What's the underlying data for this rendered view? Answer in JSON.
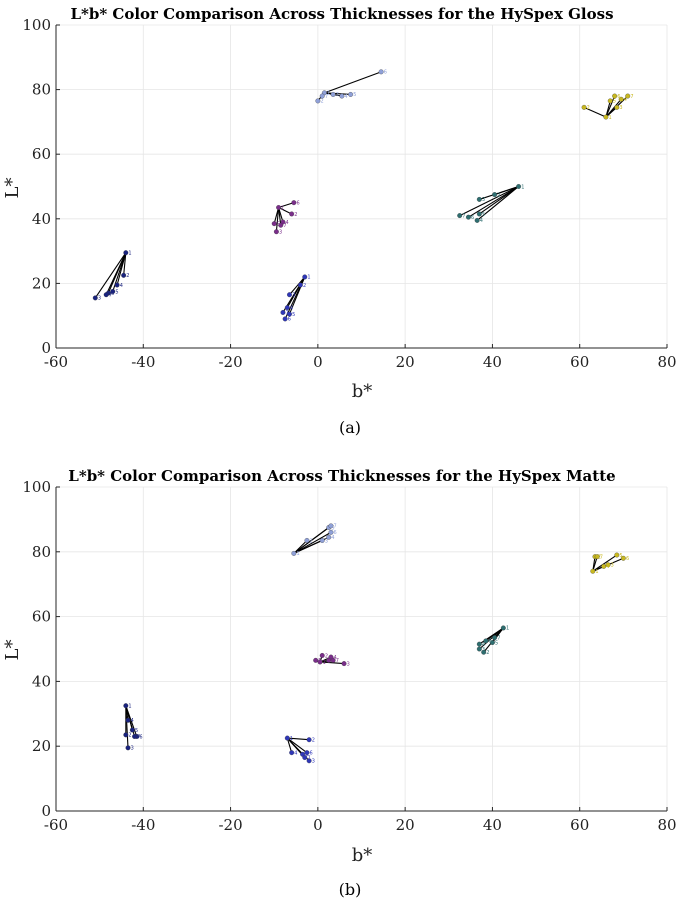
{
  "captions": [
    "(a)",
    "(b)"
  ],
  "colors": {
    "navy": "#1a237e",
    "blue": "#2f37b8",
    "purple": "#7a2e8a",
    "teal": "#2e6e70",
    "lightblue": "#8fa0d8",
    "yellow": "#c8b820"
  },
  "chart_data": [
    {
      "type": "scatter",
      "title": "L*b* Color Comparison Across Thicknesses for the HySpex Gloss",
      "xlabel": "b*",
      "ylabel": "L*",
      "xlim": [
        -60,
        80
      ],
      "ylim": [
        0,
        100
      ],
      "xticks": [
        "-60",
        "-40",
        "-20",
        "0",
        "20",
        "40",
        "60",
        "80"
      ],
      "yticks": [
        "0",
        "20",
        "40",
        "60",
        "80",
        "100"
      ],
      "grid": true,
      "groups": [
        {
          "color": "navy",
          "points": [
            {
              "b": -44,
              "L": 29.5,
              "label": "1"
            },
            {
              "b": -44.5,
              "L": 22.5,
              "label": "2"
            },
            {
              "b": -51,
              "L": 15.5,
              "label": "3"
            },
            {
              "b": -46,
              "L": 19.5,
              "label": "4"
            },
            {
              "b": -47,
              "L": 17.5,
              "label": "5"
            },
            {
              "b": -48,
              "L": 17,
              "label": "6"
            },
            {
              "b": -48.5,
              "L": 16.5,
              "label": "7"
            }
          ]
        },
        {
          "color": "blue",
          "points": [
            {
              "b": -3,
              "L": 22,
              "label": "1"
            },
            {
              "b": -4,
              "L": 19.5,
              "label": "2"
            },
            {
              "b": -6.5,
              "L": 16.5,
              "label": "3"
            },
            {
              "b": -7,
              "L": 12.5,
              "label": "4"
            },
            {
              "b": -6.5,
              "L": 10.5,
              "label": "5"
            },
            {
              "b": -7.5,
              "L": 9,
              "label": "6"
            },
            {
              "b": -8,
              "L": 11,
              "label": "7"
            }
          ]
        },
        {
          "color": "purple",
          "points": [
            {
              "b": -9,
              "L": 43.5,
              "label": "1"
            },
            {
              "b": -6,
              "L": 41.5,
              "label": "2"
            },
            {
              "b": -9.5,
              "L": 36,
              "label": "3"
            },
            {
              "b": -8,
              "L": 39,
              "label": "4"
            },
            {
              "b": -10,
              "L": 38.5,
              "label": "5"
            },
            {
              "b": -5.5,
              "L": 45,
              "label": "6"
            },
            {
              "b": -8.5,
              "L": 38,
              "label": "7"
            }
          ]
        },
        {
          "color": "teal",
          "points": [
            {
              "b": 46,
              "L": 50,
              "label": "1"
            },
            {
              "b": 40.5,
              "L": 47.5,
              "label": "2"
            },
            {
              "b": 37,
              "L": 46,
              "label": "3"
            },
            {
              "b": 36.5,
              "L": 39.5,
              "label": "4"
            },
            {
              "b": 37,
              "L": 41.5,
              "label": "5"
            },
            {
              "b": 34.5,
              "L": 40.5,
              "label": "6"
            },
            {
              "b": 32.5,
              "L": 41,
              "label": "7"
            }
          ]
        },
        {
          "color": "lightblue",
          "points": [
            {
              "b": 1.5,
              "L": 79,
              "label": "1"
            },
            {
              "b": 0,
              "L": 76.5,
              "label": "2"
            },
            {
              "b": 3.5,
              "L": 78.5,
              "label": "3"
            },
            {
              "b": 5.5,
              "L": 78,
              "label": "4"
            },
            {
              "b": 7.5,
              "L": 78.5,
              "label": "5"
            },
            {
              "b": 14.5,
              "L": 85.5,
              "label": "6"
            },
            {
              "b": 1,
              "L": 78,
              "label": "7"
            }
          ]
        },
        {
          "color": "yellow",
          "points": [
            {
              "b": 66,
              "L": 71.5,
              "label": "1"
            },
            {
              "b": 61,
              "L": 74.5,
              "label": "2"
            },
            {
              "b": 68.5,
              "L": 74.5,
              "label": "3"
            },
            {
              "b": 69.5,
              "L": 77,
              "label": "4"
            },
            {
              "b": 67,
              "L": 76.5,
              "label": "5"
            },
            {
              "b": 68,
              "L": 78,
              "label": "6"
            },
            {
              "b": 71,
              "L": 78,
              "label": "7"
            }
          ]
        }
      ]
    },
    {
      "type": "scatter",
      "title": "L*b* Color Comparison Across Thicknesses for the HySpex Matte",
      "xlabel": "b*",
      "ylabel": "L*",
      "xlim": [
        -60,
        80
      ],
      "ylim": [
        0,
        100
      ],
      "xticks": [
        "-60",
        "-40",
        "-20",
        "0",
        "20",
        "40",
        "60",
        "80"
      ],
      "yticks": [
        "0",
        "20",
        "40",
        "60",
        "80",
        "100"
      ],
      "grid": true,
      "groups": [
        {
          "color": "navy",
          "points": [
            {
              "b": -44,
              "L": 32.5,
              "label": "1"
            },
            {
              "b": -44,
              "L": 23.5,
              "label": "2"
            },
            {
              "b": -43.5,
              "L": 19.5,
              "label": "3"
            },
            {
              "b": -43.5,
              "L": 28,
              "label": "4"
            },
            {
              "b": -42.5,
              "L": 25,
              "label": "5"
            },
            {
              "b": -41.5,
              "L": 23,
              "label": "6"
            },
            {
              "b": -42,
              "L": 23,
              "label": "7"
            }
          ]
        },
        {
          "color": "blue",
          "points": [
            {
              "b": -7,
              "L": 22.5,
              "label": "1"
            },
            {
              "b": -2,
              "L": 22,
              "label": "2"
            },
            {
              "b": -2,
              "L": 15.5,
              "label": "3"
            },
            {
              "b": -6,
              "L": 18,
              "label": "4"
            },
            {
              "b": -3.5,
              "L": 17.5,
              "label": "5"
            },
            {
              "b": -2.5,
              "L": 18,
              "label": "6"
            },
            {
              "b": -3,
              "L": 16.5,
              "label": "7"
            }
          ]
        },
        {
          "color": "purple",
          "points": [
            {
              "b": 0.5,
              "L": 46,
              "label": "1"
            },
            {
              "b": 1,
              "L": 48,
              "label": "2"
            },
            {
              "b": 6,
              "L": 45.5,
              "label": "3"
            },
            {
              "b": 3,
              "L": 47.5,
              "label": "4"
            },
            {
              "b": -0.5,
              "L": 46.5,
              "label": "5"
            },
            {
              "b": 2.5,
              "L": 46.5,
              "label": "6"
            },
            {
              "b": 3.5,
              "L": 46.5,
              "label": "7"
            }
          ]
        },
        {
          "color": "teal",
          "points": [
            {
              "b": 42.5,
              "L": 56.5,
              "label": "1"
            },
            {
              "b": 38,
              "L": 49,
              "label": "2"
            },
            {
              "b": 37,
              "L": 50,
              "label": "3"
            },
            {
              "b": 37,
              "L": 51.5,
              "label": "4"
            },
            {
              "b": 40,
              "L": 52,
              "label": "5"
            },
            {
              "b": 38.5,
              "L": 52.5,
              "label": "6"
            },
            {
              "b": 40.5,
              "L": 53.5,
              "label": "7"
            }
          ]
        },
        {
          "color": "lightblue",
          "points": [
            {
              "b": -5.5,
              "L": 79.5,
              "label": "1"
            },
            {
              "b": -2.5,
              "L": 83.5,
              "label": "2"
            },
            {
              "b": 1,
              "L": 83.5,
              "label": "3"
            },
            {
              "b": 2.5,
              "L": 84.5,
              "label": "4"
            },
            {
              "b": 2.5,
              "L": 87.5,
              "label": "5"
            },
            {
              "b": 3,
              "L": 86,
              "label": "6"
            },
            {
              "b": 3,
              "L": 88,
              "label": "7"
            }
          ]
        },
        {
          "color": "yellow",
          "points": [
            {
              "b": 63,
              "L": 74,
              "label": "1"
            },
            {
              "b": 63.5,
              "L": 78.5,
              "label": "2"
            },
            {
              "b": 66.5,
              "L": 76,
              "label": "3"
            },
            {
              "b": 65.5,
              "L": 75.5,
              "label": "4"
            },
            {
              "b": 68.5,
              "L": 79,
              "label": "5"
            },
            {
              "b": 70,
              "L": 78,
              "label": "6"
            },
            {
              "b": 64,
              "L": 78.5,
              "label": "7"
            }
          ]
        }
      ]
    }
  ]
}
